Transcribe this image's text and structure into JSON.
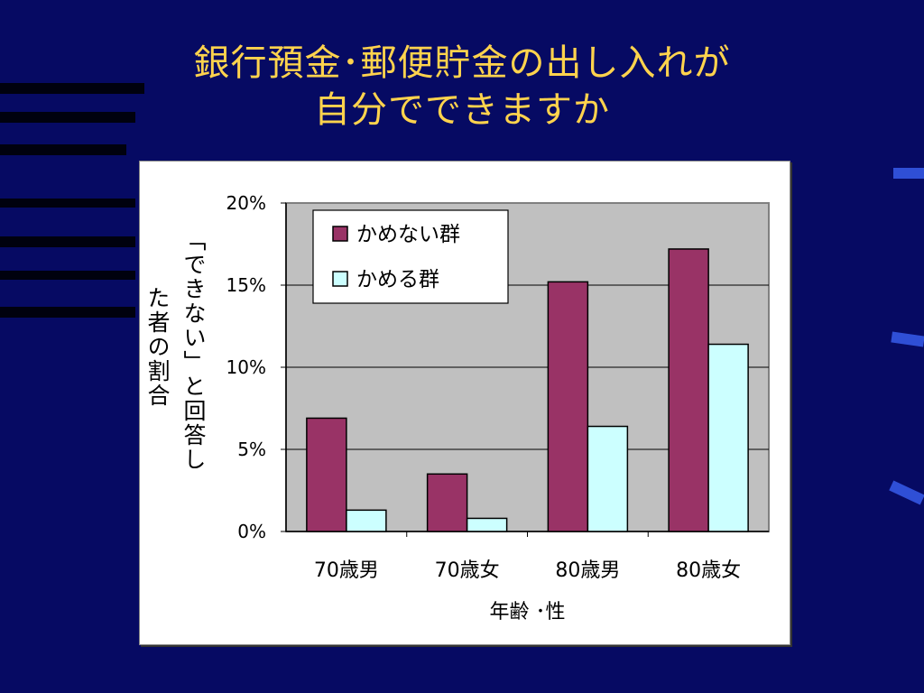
{
  "slide": {
    "title_lines": [
      "銀行預金･郵便貯金の出し入れが",
      "自分でできますか"
    ],
    "colors": {
      "background": "#060a63",
      "title": "#ffd34d",
      "panel": "#ffffff"
    }
  },
  "chart_data": {
    "type": "bar",
    "categories": [
      "70歳男",
      "70歳女",
      "80歳男",
      "80歳女"
    ],
    "series": [
      {
        "name": "かめない群",
        "values": [
          6.9,
          3.5,
          15.2,
          17.2
        ],
        "color": "#993366"
      },
      {
        "name": "かめる群",
        "values": [
          1.3,
          0.8,
          6.4,
          11.4
        ],
        "color": "#ccffff"
      }
    ],
    "ylim": [
      0,
      20
    ],
    "yticks": [
      0,
      5,
      10,
      15,
      20
    ],
    "ytick_labels": [
      "0%",
      "5%",
      "10%",
      "15%",
      "20%"
    ],
    "xlabel": "年齢 ･性",
    "ylabel_lines": [
      "「できない」と回答し",
      "た者の割合"
    ],
    "legend_position": "top-left",
    "grid": true,
    "plot_background": "#c0c0c0"
  }
}
